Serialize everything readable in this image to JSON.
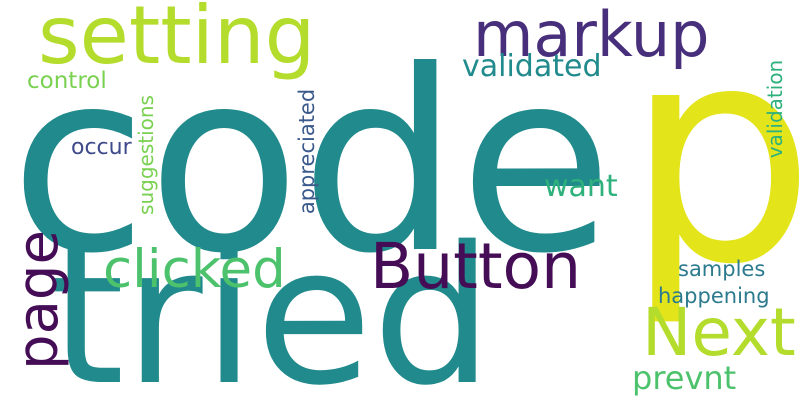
{
  "words": {
    "code": {
      "text": "code",
      "color": "#218a8c"
    },
    "p": {
      "text": "p",
      "color": "#e3e419"
    },
    "tried": {
      "text": "tried",
      "color": "#218a8c"
    },
    "setting": {
      "text": "setting",
      "color": "#b4dc2c"
    },
    "markup": {
      "text": "markup",
      "color": "#482f7c"
    },
    "button": {
      "text": "Button",
      "color": "#440d55"
    },
    "next": {
      "text": "Next",
      "color": "#b4dc2c"
    },
    "clicked": {
      "text": "clicked",
      "color": "#4cc26c"
    },
    "page": {
      "text": "page",
      "color": "#440d55"
    },
    "validated": {
      "text": "validated",
      "color": "#218a8c"
    },
    "want": {
      "text": "want",
      "color": "#2eb17c"
    },
    "prevnt": {
      "text": "prevnt",
      "color": "#4cc26c"
    },
    "samples": {
      "text": "samples",
      "color": "#2c7a8e"
    },
    "happening": {
      "text": "happening",
      "color": "#2c7a8e"
    },
    "occur": {
      "text": "occur",
      "color": "#3e4a89"
    },
    "control": {
      "text": "control",
      "color": "#7ad151"
    },
    "suggestions": {
      "text": "suggestions",
      "color": "#7ad151"
    },
    "appreciated": {
      "text": "appreciated",
      "color": "#3b5a8c"
    },
    "validation": {
      "text": "validation",
      "color": "#2eb17c"
    }
  }
}
